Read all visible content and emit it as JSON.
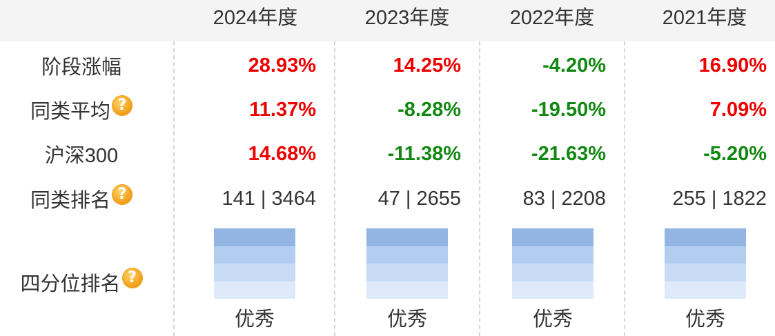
{
  "columns": [
    "2024年度",
    "2023年度",
    "2022年度",
    "2021年度"
  ],
  "rows": {
    "stage_return": {
      "label": "阶段涨幅",
      "values": [
        "28.93%",
        "14.25%",
        "-4.20%",
        "16.90%"
      ],
      "trend": [
        "up",
        "up",
        "down",
        "up"
      ]
    },
    "category_avg": {
      "label": "同类平均",
      "values": [
        "11.37%",
        "-8.28%",
        "-19.50%",
        "7.09%"
      ],
      "trend": [
        "up",
        "down",
        "down",
        "up"
      ]
    },
    "csi300": {
      "label": "沪深300",
      "values": [
        "14.68%",
        "-11.38%",
        "-21.63%",
        "-5.20%"
      ],
      "trend": [
        "up",
        "down",
        "down",
        "down"
      ]
    },
    "category_rank": {
      "label": "同类排名",
      "values": [
        "141 | 3464",
        "47 | 2655",
        "83 | 2208",
        "255 | 1822"
      ]
    },
    "quartile_rank": {
      "label": "四分位排名",
      "quartile": [
        1,
        1,
        1,
        1
      ],
      "values": [
        "优秀",
        "优秀",
        "优秀",
        "优秀"
      ]
    }
  },
  "help_icon": "?",
  "colors": {
    "up": "#ee0000",
    "down": "#118811",
    "quartile_filled": "#93b5e3",
    "help_icon": "#f5a623"
  }
}
